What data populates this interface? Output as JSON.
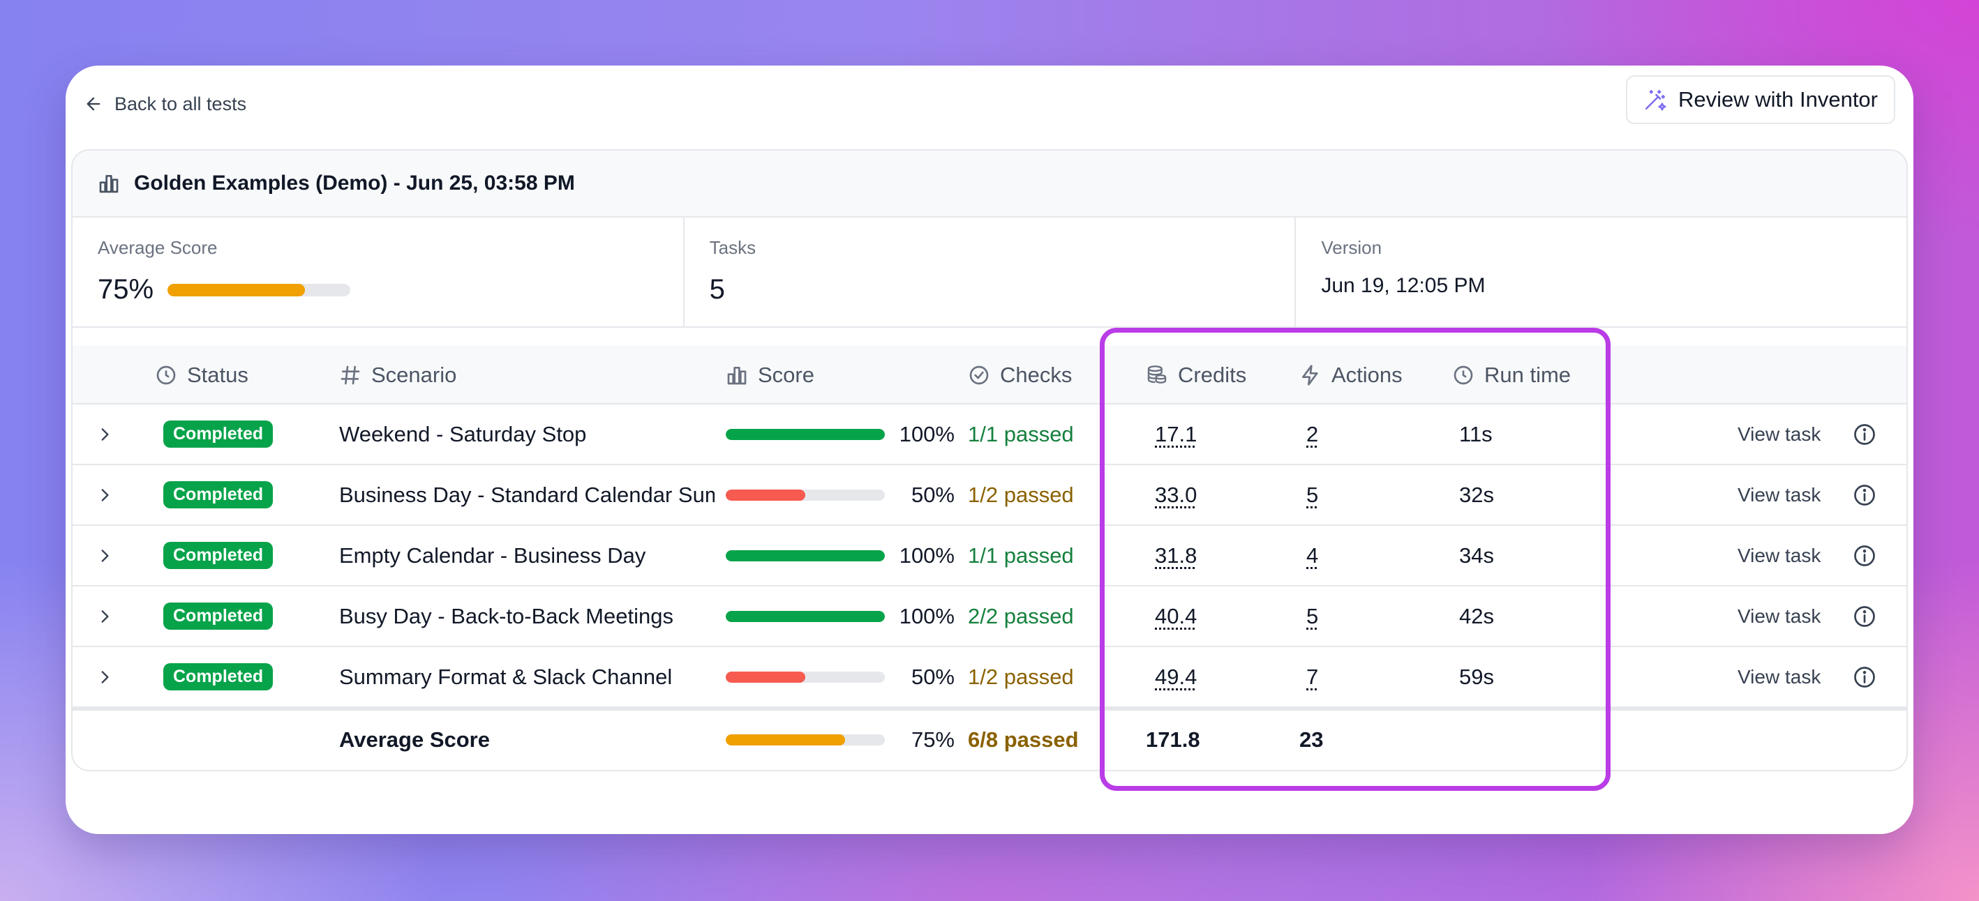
{
  "header": {
    "back_label": "Back to all tests",
    "review_label": "Review with Inventor"
  },
  "panel": {
    "title": "Golden Examples (Demo) - Jun 25, 03:58 PM"
  },
  "stats": {
    "average_score_label": "Average Score",
    "average_score_value": "75%",
    "average_score_fraction": 0.75,
    "tasks_label": "Tasks",
    "tasks_value": "5",
    "version_label": "Version",
    "version_value": "Jun 19, 12:05 PM"
  },
  "columns": {
    "status": "Status",
    "scenario": "Scenario",
    "score": "Score",
    "checks": "Checks",
    "credits": "Credits",
    "actions": "Actions",
    "runtime": "Run time"
  },
  "rows": [
    {
      "status": "Completed",
      "scenario": "Weekend - Saturday Stop",
      "score_fraction": 1.0,
      "score": "100%",
      "checks": "1/1 passed",
      "credits": "17.1",
      "actions": "2",
      "runtime": "11s",
      "view": "View task"
    },
    {
      "status": "Completed",
      "scenario": "Business Day - Standard Calendar Summary",
      "score_fraction": 0.5,
      "score": "50%",
      "checks": "1/2 passed",
      "credits": "33.0",
      "actions": "5",
      "runtime": "32s",
      "view": "View task"
    },
    {
      "status": "Completed",
      "scenario": "Empty Calendar - Business Day",
      "score_fraction": 1.0,
      "score": "100%",
      "checks": "1/1 passed",
      "credits": "31.8",
      "actions": "4",
      "runtime": "34s",
      "view": "View task"
    },
    {
      "status": "Completed",
      "scenario": "Busy Day - Back-to-Back Meetings",
      "score_fraction": 1.0,
      "score": "100%",
      "checks": "2/2 passed",
      "credits": "40.4",
      "actions": "5",
      "runtime": "42s",
      "view": "View task"
    },
    {
      "status": "Completed",
      "scenario": "Summary Format & Slack Channel",
      "score_fraction": 0.5,
      "score": "50%",
      "checks": "1/2 passed",
      "credits": "49.4",
      "actions": "7",
      "runtime": "59s",
      "view": "View task"
    }
  ],
  "footer": {
    "label": "Average Score",
    "score_fraction": 0.75,
    "score": "75%",
    "checks": "6/8 passed",
    "credits": "171.8",
    "actions": "23"
  },
  "colors": {
    "full": "#07a34a",
    "half": "#f75a4f",
    "average": "#f0a000",
    "highlight": "#b93ce6"
  }
}
